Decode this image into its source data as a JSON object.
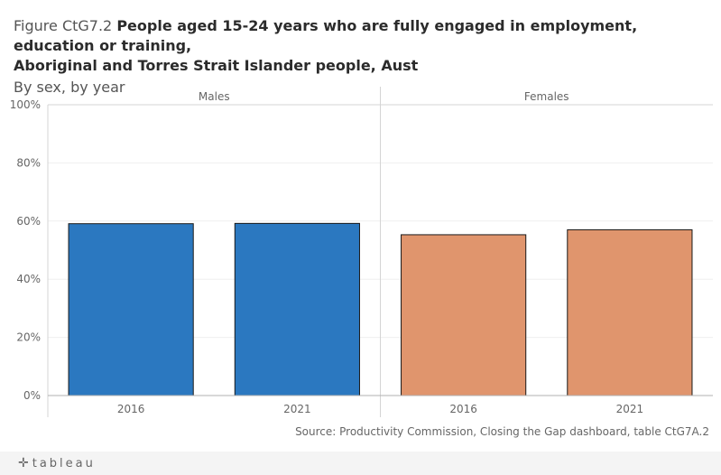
{
  "title": {
    "prefix": "Figure CtG7.2",
    "main_line1": "People aged 15-24 years who are fully engaged in employment, education or training,",
    "main_line2": "Aboriginal and Torres Strait Islander people, Aust"
  },
  "subtitle": "By sex, by year",
  "source": "Source: Productivity Commission, Closing the Gap dashboard, table CtG7A.2",
  "footer": {
    "logo_text": "tableau",
    "logo_icon": "tableau-plus-icon"
  },
  "chart_data": {
    "type": "bar",
    "panels": [
      {
        "name": "Males",
        "color": "#2b78c0",
        "categories": [
          "2016",
          "2021"
        ],
        "values": [
          59.1,
          59.2
        ]
      },
      {
        "name": "Females",
        "color": "#e0956d",
        "categories": [
          "2016",
          "2021"
        ],
        "values": [
          55.3,
          57.0
        ]
      }
    ],
    "ylim": [
      0,
      100
    ],
    "yticks": [
      0,
      20,
      40,
      60,
      80,
      100
    ],
    "ytick_labels": [
      "0%",
      "20%",
      "40%",
      "60%",
      "80%",
      "100%"
    ],
    "xlabel": "",
    "ylabel": "",
    "grid": true,
    "legend": "none"
  }
}
